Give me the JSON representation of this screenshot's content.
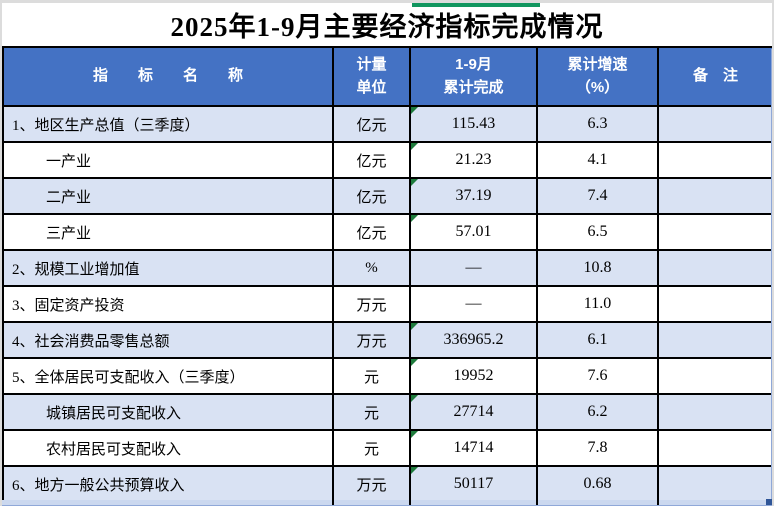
{
  "title": "2025年1-9月主要经济指标完成情况",
  "table": {
    "header": {
      "indicator": "指　　标　　名　　称",
      "unit": [
        "计量",
        "单位"
      ],
      "value": [
        "1-9月",
        "累计完成"
      ],
      "growth": [
        "累计增速",
        "（%）"
      ],
      "remark": "备　注"
    },
    "rows": [
      {
        "name": "1、地区生产总值（三季度）",
        "unit": "亿元",
        "value": "115.43",
        "growth": "6.3",
        "remark": "",
        "indent": false,
        "flag": true
      },
      {
        "name": "一产业",
        "unit": "亿元",
        "value": "21.23",
        "growth": "4.1",
        "remark": "",
        "indent": true,
        "flag": true
      },
      {
        "name": "二产业",
        "unit": "亿元",
        "value": "37.19",
        "growth": "7.4",
        "remark": "",
        "indent": true,
        "flag": true
      },
      {
        "name": "三产业",
        "unit": "亿元",
        "value": "57.01",
        "growth": "6.5",
        "remark": "",
        "indent": true,
        "flag": true
      },
      {
        "name": "2、规模工业增加值",
        "unit": "%",
        "value": "—",
        "growth": "10.8",
        "remark": "",
        "indent": false,
        "flag": false
      },
      {
        "name": "3、固定资产投资",
        "unit": "万元",
        "value": "—",
        "growth": "11.0",
        "remark": "",
        "indent": false,
        "flag": false
      },
      {
        "name": "4、社会消费品零售总额",
        "unit": "万元",
        "value": "336965.2",
        "growth": "6.1",
        "remark": "",
        "indent": false,
        "flag": true
      },
      {
        "name": "5、全体居民可支配收入（三季度）",
        "unit": "元",
        "value": "19952",
        "growth": "7.6",
        "remark": "",
        "indent": false,
        "flag": true
      },
      {
        "name": "城镇居民可支配收入",
        "unit": "元",
        "value": "27714",
        "growth": "6.2",
        "remark": "",
        "indent": true,
        "flag": true
      },
      {
        "name": "农村居民可支配收入",
        "unit": "元",
        "value": "14714",
        "growth": "7.8",
        "remark": "",
        "indent": true,
        "flag": true
      },
      {
        "name": "6、地方一般公共预算收入",
        "unit": "万元",
        "value": "50117",
        "growth": "0.68",
        "remark": "",
        "indent": false,
        "flag": true
      }
    ]
  },
  "colors": {
    "header_bg": "#4472C4",
    "header_text": "#FFFFFF",
    "row_shaded": "#D9E2F3",
    "row_plain": "#FFFFFF",
    "grid": "#000000",
    "flag_green": "#1E7B3C",
    "accent_green": "#11965F",
    "strip_bg": "#CBD8EF",
    "fill_handle": "#2F5597"
  }
}
